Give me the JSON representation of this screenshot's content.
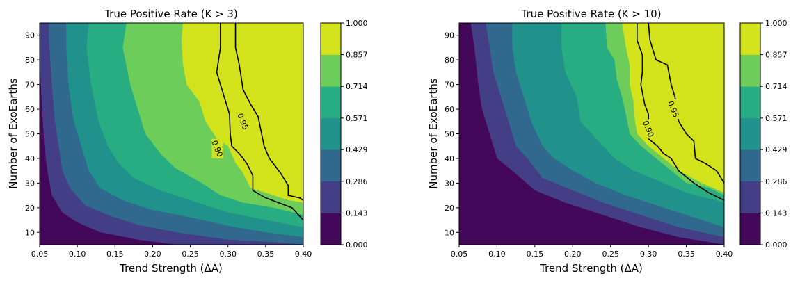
{
  "chart_data": [
    {
      "type": "contourf",
      "title": "True Positive Rate (K > 3)",
      "xlabel": "Trend Strength (ΔA)",
      "ylabel": "Number of ExoEarths",
      "xlim": [
        0.05,
        0.4
      ],
      "ylim": [
        5,
        95
      ],
      "xticks": [
        "0.05",
        "0.10",
        "0.15",
        "0.20",
        "0.25",
        "0.30",
        "0.35",
        "0.40"
      ],
      "xtick_values": [
        0.05,
        0.1,
        0.15,
        0.2,
        0.25,
        0.3,
        0.35,
        0.4
      ],
      "yticks": [
        "10",
        "20",
        "30",
        "40",
        "50",
        "60",
        "70",
        "80",
        "90"
      ],
      "ytick_values": [
        10,
        20,
        30,
        40,
        50,
        60,
        70,
        80,
        90
      ],
      "colorbar": {
        "levels": [
          0.0,
          0.143,
          0.286,
          0.429,
          0.571,
          0.714,
          0.857,
          1.0
        ],
        "labels": [
          "0.000",
          "0.143",
          "0.286",
          "0.429",
          "0.571",
          "0.714",
          "0.857",
          "1.000"
        ],
        "colors": [
          "#44085b",
          "#433e85",
          "#31688e",
          "#21918c",
          "#27ad81",
          "#6ccd5a",
          "#d2e21b"
        ]
      },
      "boundaries": [
        {
          "level": "0.143",
          "points": [
            [
              0.05,
              78
            ],
            [
              0.053,
              60
            ],
            [
              0.056,
              45
            ],
            [
              0.06,
              35
            ],
            [
              0.066,
              25
            ],
            [
              0.08,
              18
            ],
            [
              0.1,
              14
            ],
            [
              0.13,
              10
            ],
            [
              0.18,
              7
            ],
            [
              0.23,
              5
            ]
          ]
        },
        {
          "level": "0.286",
          "points": [
            [
              0.062,
              95
            ],
            [
              0.062,
              88
            ],
            [
              0.066,
              70
            ],
            [
              0.07,
              55
            ],
            [
              0.075,
              45
            ],
            [
              0.08,
              35
            ],
            [
              0.09,
              28
            ],
            [
              0.11,
              21
            ],
            [
              0.14,
              17
            ],
            [
              0.18,
              13
            ],
            [
              0.23,
              10
            ],
            [
              0.3,
              7
            ],
            [
              0.36,
              6
            ],
            [
              0.4,
              5
            ]
          ]
        },
        {
          "level": "0.429",
          "points": [
            [
              0.085,
              95
            ],
            [
              0.085,
              85
            ],
            [
              0.088,
              70
            ],
            [
              0.095,
              55
            ],
            [
              0.105,
              45
            ],
            [
              0.115,
              35
            ],
            [
              0.13,
              28
            ],
            [
              0.16,
              23
            ],
            [
              0.2,
              19
            ],
            [
              0.25,
              16
            ],
            [
              0.31,
              12
            ],
            [
              0.35,
              10
            ],
            [
              0.4,
              8
            ]
          ]
        },
        {
          "level": "0.571",
          "points": [
            [
              0.115,
              95
            ],
            [
              0.112,
              85
            ],
            [
              0.118,
              70
            ],
            [
              0.128,
              55
            ],
            [
              0.14,
              45
            ],
            [
              0.155,
              38
            ],
            [
              0.175,
              32
            ],
            [
              0.21,
              27
            ],
            [
              0.26,
              22
            ],
            [
              0.3,
              18
            ],
            [
              0.35,
              15
            ],
            [
              0.4,
              12
            ]
          ]
        },
        {
          "level": "0.714",
          "points": [
            [
              0.165,
              95
            ],
            [
              0.16,
              85
            ],
            [
              0.17,
              70
            ],
            [
              0.18,
              60
            ],
            [
              0.19,
              50
            ],
            [
              0.21,
              42
            ],
            [
              0.23,
              36
            ],
            [
              0.265,
              30
            ],
            [
              0.29,
              25
            ],
            [
              0.32,
              22
            ],
            [
              0.36,
              20
            ],
            [
              0.4,
              17
            ]
          ]
        },
        {
          "level": "0.857",
          "points": [
            [
              0.24,
              95
            ],
            [
              0.238,
              88
            ],
            [
              0.24,
              78
            ],
            [
              0.245,
              70
            ],
            [
              0.262,
              63
            ],
            [
              0.27,
              55
            ],
            [
              0.285,
              48
            ],
            [
              0.3,
              45
            ],
            [
              0.31,
              38
            ],
            [
              0.318,
              35
            ],
            [
              0.33,
              28
            ],
            [
              0.35,
              26
            ],
            [
              0.38,
              23
            ],
            [
              0.4,
              22
            ]
          ]
        }
      ],
      "contour_lines": [
        {
          "label": "0.90",
          "label_at": [
            0.286,
            44
          ],
          "points": [
            [
              0.29,
              95
            ],
            [
              0.29,
              85
            ],
            [
              0.285,
              75
            ],
            [
              0.295,
              65
            ],
            [
              0.302,
              58
            ],
            [
              0.303,
              50
            ],
            [
              0.305,
              45
            ],
            [
              0.315,
              42
            ],
            [
              0.325,
              38
            ],
            [
              0.333,
              33
            ],
            [
              0.333,
              27
            ],
            [
              0.35,
              24
            ],
            [
              0.385,
              20
            ],
            [
              0.4,
              15
            ]
          ]
        },
        {
          "label": "0.95",
          "label_at": [
            0.32,
            55
          ],
          "points": [
            [
              0.31,
              95
            ],
            [
              0.31,
              85
            ],
            [
              0.315,
              78
            ],
            [
              0.318,
              72
            ],
            [
              0.32,
              68
            ],
            [
              0.33,
              62
            ],
            [
              0.34,
              57
            ],
            [
              0.348,
              45
            ],
            [
              0.355,
              40
            ],
            [
              0.37,
              34
            ],
            [
              0.38,
              29
            ],
            [
              0.38,
              25
            ],
            [
              0.395,
              24
            ],
            [
              0.4,
              23
            ]
          ]
        }
      ]
    },
    {
      "type": "contourf",
      "title": "True Positive Rate (K > 10)",
      "xlabel": "Trend Strength (ΔA)",
      "ylabel": "Number of ExoEarths",
      "xlim": [
        0.05,
        0.4
      ],
      "ylim": [
        5,
        95
      ],
      "xticks": [
        "0.05",
        "0.10",
        "0.15",
        "0.20",
        "0.25",
        "0.30",
        "0.35",
        "0.40"
      ],
      "xtick_values": [
        0.05,
        0.1,
        0.15,
        0.2,
        0.25,
        0.3,
        0.35,
        0.4
      ],
      "yticks": [
        "10",
        "20",
        "30",
        "40",
        "50",
        "60",
        "70",
        "80",
        "90"
      ],
      "ytick_values": [
        10,
        20,
        30,
        40,
        50,
        60,
        70,
        80,
        90
      ],
      "colorbar": {
        "levels": [
          0.0,
          0.143,
          0.286,
          0.429,
          0.571,
          0.714,
          0.857,
          1.0
        ],
        "labels": [
          "0.000",
          "0.143",
          "0.286",
          "0.429",
          "0.571",
          "0.714",
          "0.857",
          "1.000"
        ],
        "colors": [
          "#44085b",
          "#433e85",
          "#31688e",
          "#21918c",
          "#27ad81",
          "#6ccd5a",
          "#d2e21b"
        ]
      },
      "boundaries": [
        {
          "level": "0.143",
          "points": [
            [
              0.065,
              95
            ],
            [
              0.07,
              85
            ],
            [
              0.075,
              70
            ],
            [
              0.08,
              60
            ],
            [
              0.09,
              50
            ],
            [
              0.1,
              40
            ],
            [
              0.12,
              35
            ],
            [
              0.15,
              27
            ],
            [
              0.19,
              22
            ],
            [
              0.24,
              17
            ],
            [
              0.29,
              12
            ],
            [
              0.34,
              8
            ],
            [
              0.4,
              5
            ]
          ]
        },
        {
          "level": "0.286",
          "points": [
            [
              0.085,
              95
            ],
            [
              0.09,
              85
            ],
            [
              0.095,
              75
            ],
            [
              0.105,
              65
            ],
            [
              0.115,
              55
            ],
            [
              0.125,
              45
            ],
            [
              0.14,
              40
            ],
            [
              0.16,
              32
            ],
            [
              0.2,
              27
            ],
            [
              0.24,
              22
            ],
            [
              0.29,
              17
            ],
            [
              0.34,
              12
            ],
            [
              0.4,
              8
            ]
          ]
        },
        {
          "level": "0.429",
          "points": [
            [
              0.12,
              95
            ],
            [
              0.12,
              85
            ],
            [
              0.125,
              75
            ],
            [
              0.135,
              65
            ],
            [
              0.145,
              55
            ],
            [
              0.16,
              45
            ],
            [
              0.175,
              40
            ],
            [
              0.2,
              35
            ],
            [
              0.23,
              30
            ],
            [
              0.27,
              25
            ],
            [
              0.32,
              20
            ],
            [
              0.36,
              16
            ],
            [
              0.4,
              12
            ]
          ]
        },
        {
          "level": "0.571",
          "points": [
            [
              0.185,
              95
            ],
            [
              0.185,
              85
            ],
            [
              0.19,
              75
            ],
            [
              0.205,
              65
            ],
            [
              0.21,
              55
            ],
            [
              0.225,
              50
            ],
            [
              0.24,
              45
            ],
            [
              0.255,
              40
            ],
            [
              0.28,
              35
            ],
            [
              0.32,
              30
            ],
            [
              0.35,
              26
            ],
            [
              0.4,
              22
            ]
          ]
        },
        {
          "level": "0.714",
          "points": [
            [
              0.243,
              95
            ],
            [
              0.245,
              85
            ],
            [
              0.255,
              80
            ],
            [
              0.258,
              72
            ],
            [
              0.265,
              65
            ],
            [
              0.27,
              58
            ],
            [
              0.275,
              50
            ],
            [
              0.29,
              45
            ],
            [
              0.31,
              40
            ],
            [
              0.33,
              35
            ],
            [
              0.35,
              30
            ],
            [
              0.38,
              28
            ],
            [
              0.4,
              25
            ]
          ]
        },
        {
          "level": "0.857",
          "points": [
            [
              0.265,
              95
            ],
            [
              0.27,
              85
            ],
            [
              0.275,
              78
            ],
            [
              0.275,
              70
            ],
            [
              0.28,
              63
            ],
            [
              0.282,
              55
            ],
            [
              0.285,
              50
            ],
            [
              0.3,
              45
            ],
            [
              0.32,
              40
            ],
            [
              0.34,
              35
            ],
            [
              0.37,
              30
            ],
            [
              0.4,
              26
            ]
          ]
        }
      ],
      "contour_lines": [
        {
          "label": "0.90",
          "label_at": [
            0.3,
            52
          ],
          "points": [
            [
              0.285,
              95
            ],
            [
              0.285,
              88
            ],
            [
              0.292,
              82
            ],
            [
              0.292,
              75
            ],
            [
              0.29,
              70
            ],
            [
              0.295,
              62
            ],
            [
              0.3,
              58
            ],
            [
              0.3,
              48
            ],
            [
              0.312,
              45
            ],
            [
              0.32,
              42
            ],
            [
              0.33,
              40
            ],
            [
              0.34,
              35
            ],
            [
              0.36,
              30
            ],
            [
              0.38,
              26
            ],
            [
              0.4,
              23
            ]
          ]
        },
        {
          "label": "0.95",
          "label_at": [
            0.333,
            60
          ],
          "points": [
            [
              0.3,
              95
            ],
            [
              0.302,
              88
            ],
            [
              0.31,
              80
            ],
            [
              0.325,
              78
            ],
            [
              0.33,
              70
            ],
            [
              0.335,
              65
            ],
            [
              0.34,
              55
            ],
            [
              0.35,
              50
            ],
            [
              0.36,
              47
            ],
            [
              0.362,
              40
            ],
            [
              0.375,
              38
            ],
            [
              0.39,
              35
            ],
            [
              0.4,
              30
            ]
          ]
        }
      ]
    }
  ]
}
